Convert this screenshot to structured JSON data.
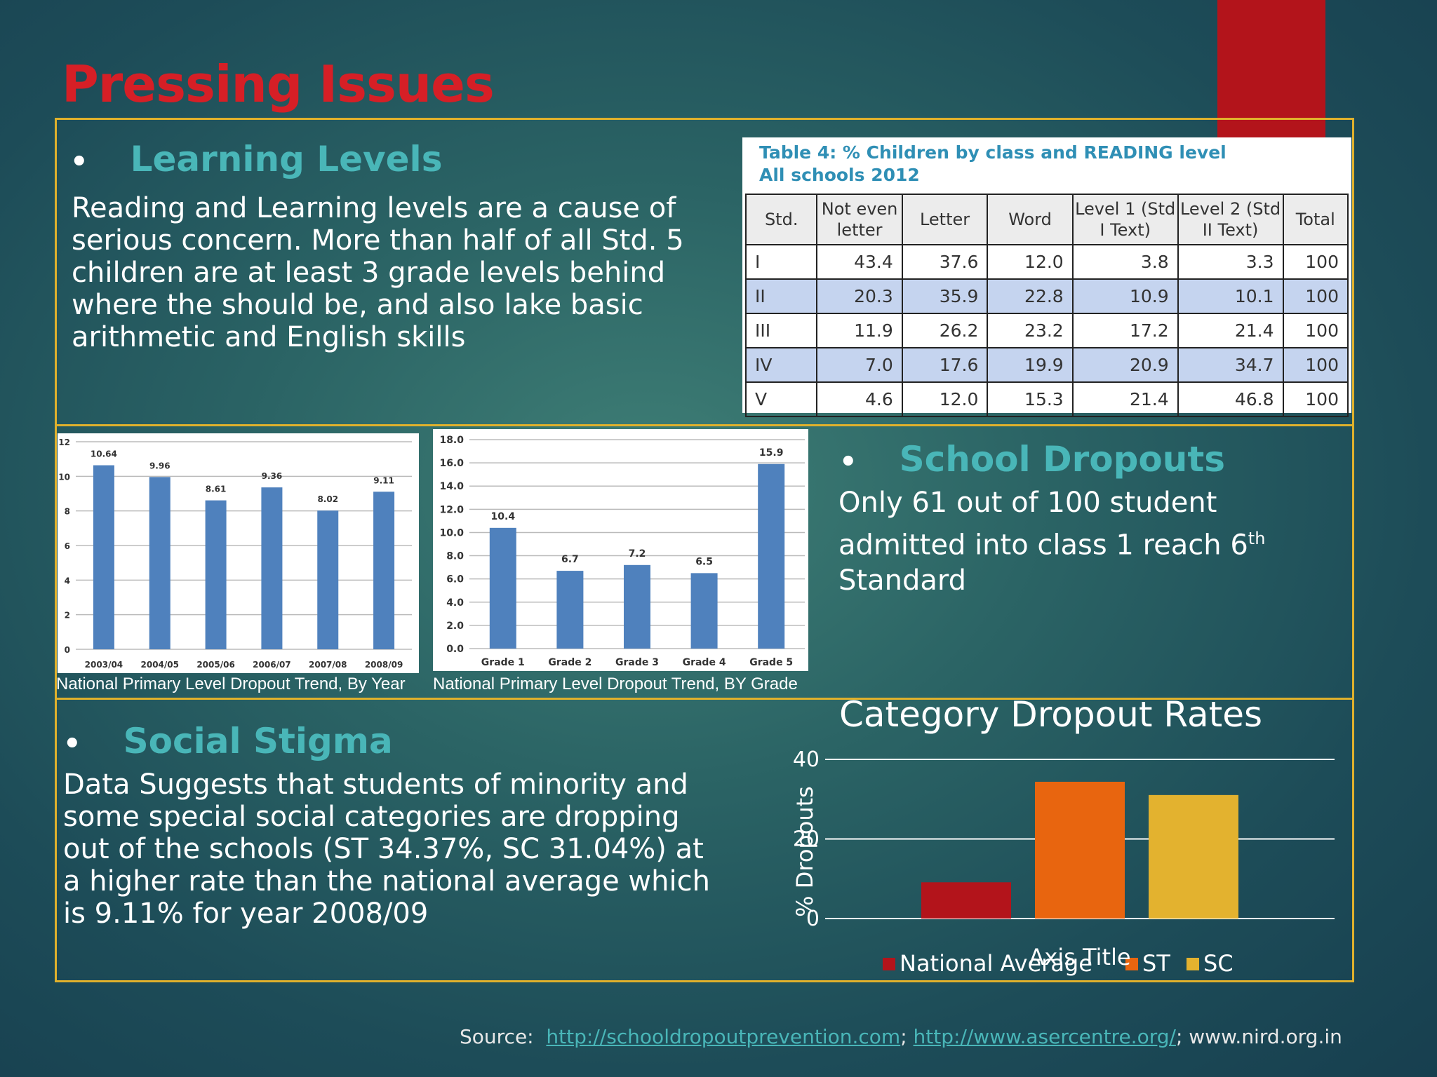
{
  "slide": {
    "title": "Pressing Issues"
  },
  "learning_levels": {
    "heading": "Learning Levels",
    "bullet": "•",
    "body": "Reading and Learning levels are a cause of serious concern. More than half of all Std. 5 children are at least 3 grade levels behind where the should be, and also lake basic arithmetic and English skills"
  },
  "reading_table": {
    "caption_line1": "Table 4: % Children by class and READING level",
    "caption_line2": "All schools 2012",
    "headers": [
      "Std.",
      "Not even letter",
      "Letter",
      "Word",
      "Level 1 (Std I Text)",
      "Level 2 (Std II Text)",
      "Total"
    ],
    "rows": [
      [
        "I",
        "43.4",
        "37.6",
        "12.0",
        "3.8",
        "3.3",
        "100"
      ],
      [
        "II",
        "20.3",
        "35.9",
        "22.8",
        "10.9",
        "10.1",
        "100"
      ],
      [
        "III",
        "11.9",
        "26.2",
        "23.2",
        "17.2",
        "21.4",
        "100"
      ],
      [
        "IV",
        "7.0",
        "17.6",
        "19.9",
        "20.9",
        "34.7",
        "100"
      ],
      [
        "V",
        "4.6",
        "12.0",
        "15.3",
        "21.4",
        "46.8",
        "100"
      ]
    ]
  },
  "school_dropouts": {
    "heading": "School Dropouts",
    "bullet": "•",
    "body_main": "Only 61 out of 100 student admitted into class 1 reach 6",
    "body_sup": "th",
    "body_end": "Standard"
  },
  "social_stigma": {
    "heading": "Social Stigma",
    "bullet": "•",
    "body": "Data Suggests that students of minority and some special social categories are dropping out of the schools (ST 34.37%, SC 31.04%) at a higher rate than the national average which is 9.11% for year 2008/09"
  },
  "category_chart_title": "Category Dropout Rates",
  "captions": {
    "by_year": "National Primary Level Dropout Trend, By Year",
    "by_grade": "National Primary Level Dropout Trend, BY Grade"
  },
  "source": {
    "label": "Source:",
    "link1": "http://schooldropoutprevention.com",
    "sep1": ";",
    "link2": "http://www.asercentre.org/",
    "sep2": ";",
    "text3": "www.nird.org.in"
  },
  "colors": {
    "accent_red": "#b3141b",
    "title_red": "#d61f26",
    "heading_teal": "#49b6b8",
    "frame_gold": "#e0b12c",
    "bar_blue": "#4f81bd",
    "national": "#b3141b",
    "st": "#e8650f",
    "sc": "#e3b22f"
  },
  "chart_data": [
    {
      "type": "bar",
      "categories": [
        "2003/04",
        "2004/05",
        "2005/06",
        "2006/07",
        "2007/08",
        "2008/09"
      ],
      "values": [
        10.64,
        9.96,
        8.61,
        9.36,
        8.02,
        9.11
      ],
      "data_labels": [
        "10.64",
        "9.96",
        "8.61",
        "9.36",
        "8.02",
        "9.11"
      ],
      "yticks": [
        "0",
        "2",
        "4",
        "6",
        "8",
        "10",
        "12"
      ],
      "ylim": [
        0,
        12
      ],
      "grid": true,
      "legend": "none"
    },
    {
      "type": "bar",
      "categories": [
        "Grade 1",
        "Grade 2",
        "Grade 3",
        "Grade 4",
        "Grade 5"
      ],
      "values": [
        10.4,
        6.7,
        7.2,
        6.5,
        15.9
      ],
      "data_labels": [
        "10.4",
        "6.7",
        "7.2",
        "6.5",
        "15.9"
      ],
      "yticks": [
        "0.0",
        "2.0",
        "4.0",
        "6.0",
        "8.0",
        "10.0",
        "12.0",
        "14.0",
        "16.0",
        "18.0"
      ],
      "ylim": [
        0,
        18
      ],
      "grid": true,
      "legend": "none"
    },
    {
      "type": "bar",
      "title": "Category Dropout Rates",
      "xlabel": "Axis Title",
      "ylabel": "% Dropouts",
      "yticks": [
        "0",
        "20",
        "40"
      ],
      "ylim": [
        0,
        40
      ],
      "series": [
        {
          "name": "National Average",
          "values": [
            9.11
          ]
        },
        {
          "name": "ST",
          "values": [
            34.37
          ]
        },
        {
          "name": "SC",
          "values": [
            31.04
          ]
        }
      ],
      "grid": true,
      "legend": "bottom"
    }
  ]
}
